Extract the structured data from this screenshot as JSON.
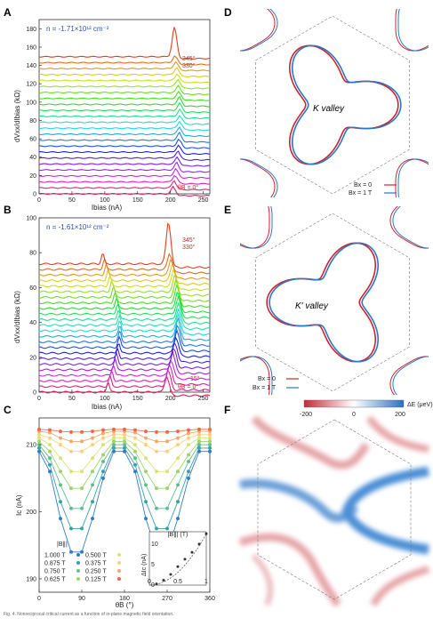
{
  "panels": {
    "A": {
      "label": "A",
      "density_text": "n = -1.71×10¹² cm⁻²",
      "ylabel": "dVxx/dIbias (kΩ)",
      "xlabel": "Ibias (nA)",
      "yticks": [
        "0",
        "20",
        "40",
        "60",
        "80",
        "100",
        "120",
        "140",
        "160",
        "180"
      ],
      "xticks": [
        "0",
        "50",
        "100",
        "150",
        "200",
        "250"
      ],
      "angle_top": "345°",
      "angle_second": "330°",
      "angle_bottom": "θB = 0°"
    },
    "B": {
      "label": "B",
      "density_text": "n = -1.61×10¹² cm⁻²",
      "ylabel": "dVxx/dIbias (kΩ)",
      "xlabel": "Ibias (nA)",
      "yticks": [
        "0",
        "20",
        "40",
        "60",
        "80",
        "100"
      ],
      "xticks": [
        "0",
        "50",
        "100",
        "150",
        "200",
        "250"
      ],
      "angle_top": "345°",
      "angle_second": "330°",
      "angle_low": "15°",
      "angle_bottom": "θB = 0°"
    },
    "C": {
      "label": "C",
      "ylabel": "Ic (nA)",
      "xlabel": "θB (°)",
      "yticks": [
        "190",
        "200",
        "210"
      ],
      "xticks": [
        "0",
        "90",
        "180",
        "270",
        "360"
      ],
      "legend_title": "|B∥|",
      "legend_left": [
        "1.000 T",
        "0.875 T",
        "0.750 T",
        "0.625 T"
      ],
      "legend_right": [
        "0.500 T",
        "0.375 T",
        "0.250 T",
        "0.125 T"
      ],
      "inset_ylabel": "ΔIc (nA)",
      "inset_xlabel": "|B∥| (T)",
      "inset_xticks": [
        "0",
        "0.5",
        "1"
      ],
      "inset_yticks": [
        "0",
        "5",
        "10"
      ]
    },
    "D": {
      "label": "D",
      "valley": "K valley",
      "legend": [
        "Bx = 0",
        "Bx = 1 T"
      ]
    },
    "E": {
      "label": "E",
      "valley": "K' valley",
      "legend": [
        "Bx = 0",
        "Bx = 1 T"
      ]
    },
    "F": {
      "label": "F",
      "colorbar_label": "ΔE (μeV)",
      "colorbar_ticks": [
        "-200",
        "0",
        "200"
      ]
    }
  },
  "colors": {
    "red": "#d2232a",
    "blue": "#2a78c8",
    "dash": "#777777"
  },
  "caption": "Fig. 4. Nonreciprocal critical current as a function of in-plane magnetic field orientation.",
  "chart_data": [
    {
      "panel": "C",
      "type": "scatter",
      "x": [
        0,
        22.5,
        45,
        67.5,
        90,
        112.5,
        135,
        157.5,
        180,
        202.5,
        225,
        247.5,
        270,
        292.5,
        315,
        337.5,
        360
      ],
      "series": [
        {
          "name": "1.000 T",
          "color": "#2f7fc1",
          "values": [
            209,
            206,
            199,
            194,
            194,
            199,
            205,
            209,
            209,
            206,
            199,
            194,
            194,
            199,
            205,
            209,
            209
          ]
        },
        {
          "name": "0.875 T",
          "color": "#3aa0a8",
          "values": [
            209.5,
            207,
            201.5,
            197.5,
            197.5,
            201.5,
            206,
            209.5,
            209.5,
            207,
            201.5,
            197.5,
            197.5,
            201.5,
            206,
            209.5,
            209.5
          ]
        },
        {
          "name": "0.750 T",
          "color": "#5fbf8c",
          "values": [
            210,
            208,
            204,
            200.5,
            200.5,
            204,
            207.5,
            210,
            210,
            208,
            204,
            200.5,
            200.5,
            204,
            207.5,
            210,
            210
          ]
        },
        {
          "name": "0.625 T",
          "color": "#9ed36b",
          "values": [
            210.5,
            209,
            206,
            203.5,
            203.5,
            206,
            208.5,
            210.5,
            210.5,
            209,
            206,
            203.5,
            203.5,
            206,
            208.5,
            210.5,
            210.5
          ]
        },
        {
          "name": "0.500 T",
          "color": "#d9e27a",
          "values": [
            211,
            210,
            208,
            206,
            206,
            208,
            210,
            211,
            211,
            210,
            208,
            206,
            206,
            208,
            210,
            211,
            211
          ]
        },
        {
          "name": "0.375 T",
          "color": "#f6d27a",
          "values": [
            211.5,
            211,
            210,
            209,
            209,
            210,
            211,
            211.5,
            211.5,
            211,
            210,
            209,
            209,
            210,
            211,
            211.5,
            211.5
          ]
        },
        {
          "name": "0.250 T",
          "color": "#f4a76a",
          "values": [
            212,
            211.8,
            211,
            210.5,
            210.5,
            211,
            211.7,
            212,
            212,
            211.8,
            211,
            210.5,
            210.5,
            211,
            211.7,
            212,
            212
          ]
        },
        {
          "name": "0.125 T",
          "color": "#ea6a4a",
          "values": [
            212.3,
            212.2,
            212,
            211.9,
            211.9,
            212,
            212.2,
            212.3,
            212.3,
            212.2,
            212,
            211.9,
            211.9,
            212,
            212.2,
            212.3,
            212.3
          ]
        }
      ],
      "xlim": [
        0,
        360
      ],
      "ylim": [
        188,
        214
      ]
    },
    {
      "panel": "C-inset",
      "type": "scatter",
      "x": [
        0.125,
        0.25,
        0.375,
        0.5,
        0.625,
        0.75,
        0.875,
        1.0
      ],
      "values": [
        0.3,
        1.2,
        2.6,
        4.5,
        6.3,
        8.0,
        10.0,
        12.5
      ],
      "xlim": [
        0,
        1
      ],
      "ylim": [
        0,
        13
      ]
    }
  ]
}
